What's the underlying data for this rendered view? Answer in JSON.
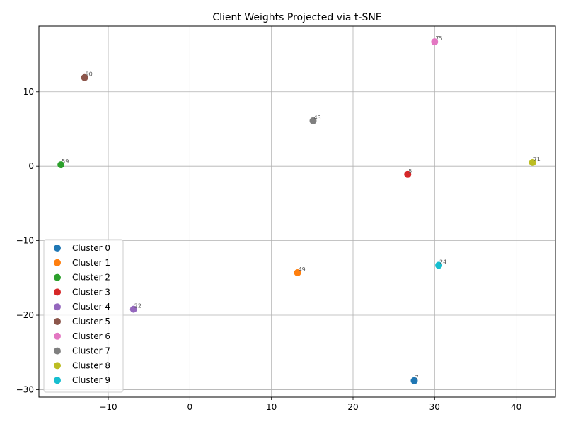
{
  "chart_data": {
    "type": "scatter",
    "title": "Client Weights Projected via t-SNE",
    "xlabel": "",
    "ylabel": "",
    "xlim": [
      -18.5,
      44.8
    ],
    "ylim": [
      -31,
      18.8
    ],
    "xticks": [
      -10,
      0,
      10,
      20,
      30,
      40
    ],
    "yticks": [
      -30,
      -20,
      -10,
      0,
      10
    ],
    "grid": true,
    "legend_position": "lower-left",
    "series": [
      {
        "name": "Cluster 0",
        "color": "#1f77b4",
        "points": [
          {
            "x": 27.5,
            "y": -28.8,
            "label": "7"
          }
        ]
      },
      {
        "name": "Cluster 1",
        "color": "#ff7f0e",
        "points": [
          {
            "x": 13.2,
            "y": -14.3,
            "label": "49"
          }
        ]
      },
      {
        "name": "Cluster 2",
        "color": "#2ca02c",
        "points": [
          {
            "x": -15.8,
            "y": 0.2,
            "label": "59"
          }
        ]
      },
      {
        "name": "Cluster 3",
        "color": "#d62728",
        "points": [
          {
            "x": 26.7,
            "y": -1.1,
            "label": "5"
          }
        ]
      },
      {
        "name": "Cluster 4",
        "color": "#9467bd",
        "points": [
          {
            "x": -6.9,
            "y": -19.2,
            "label": "22"
          }
        ]
      },
      {
        "name": "Cluster 5",
        "color": "#8c564b",
        "points": [
          {
            "x": -12.9,
            "y": 11.9,
            "label": "90"
          }
        ]
      },
      {
        "name": "Cluster 6",
        "color": "#e377c2",
        "points": [
          {
            "x": 30.0,
            "y": 16.7,
            "label": "75"
          }
        ]
      },
      {
        "name": "Cluster 7",
        "color": "#7f7f7f",
        "points": [
          {
            "x": 15.1,
            "y": 6.1,
            "label": "43"
          }
        ]
      },
      {
        "name": "Cluster 8",
        "color": "#bcbd22",
        "points": [
          {
            "x": 42.0,
            "y": 0.5,
            "label": "71"
          }
        ]
      },
      {
        "name": "Cluster 9",
        "color": "#17becf",
        "points": [
          {
            "x": 30.5,
            "y": -13.3,
            "label": "24"
          }
        ]
      }
    ]
  }
}
